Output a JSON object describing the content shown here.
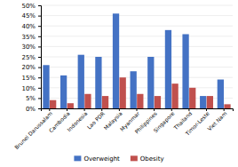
{
  "chart_data": {
    "type": "bar",
    "categories": [
      "Brunei Darussalam",
      "Cambodia",
      "Indonesia",
      "Lao PDR",
      "Malaysia",
      "Myanmar",
      "Philippines",
      "Singapore",
      "Thailand",
      "Timor-Leste",
      "Viet Nam"
    ],
    "series": [
      {
        "name": "Overweight",
        "color": "#4472C4",
        "values": [
          21,
          16,
          26,
          25,
          46,
          18,
          25,
          38,
          36,
          6,
          14
        ]
      },
      {
        "name": "Obesity",
        "color": "#C0504D",
        "values": [
          4,
          2.5,
          7,
          6,
          15,
          7,
          6,
          12,
          10,
          6,
          2
        ]
      }
    ],
    "ylim": [
      0,
      50
    ],
    "yticks": [
      {
        "value": 0,
        "label": "0%"
      },
      {
        "value": 5,
        "label": "5%"
      },
      {
        "value": 10,
        "label": "10%"
      },
      {
        "value": 15,
        "label": "15%"
      },
      {
        "value": 20,
        "label": "20%"
      },
      {
        "value": 25,
        "label": "25%"
      },
      {
        "value": 30,
        "label": "30%"
      },
      {
        "value": 35,
        "label": "35%"
      },
      {
        "value": 40,
        "label": "40%"
      },
      {
        "value": 45,
        "label": "45%"
      },
      {
        "value": 50,
        "label": "50%"
      }
    ],
    "grid": true,
    "legend": "bottom"
  }
}
